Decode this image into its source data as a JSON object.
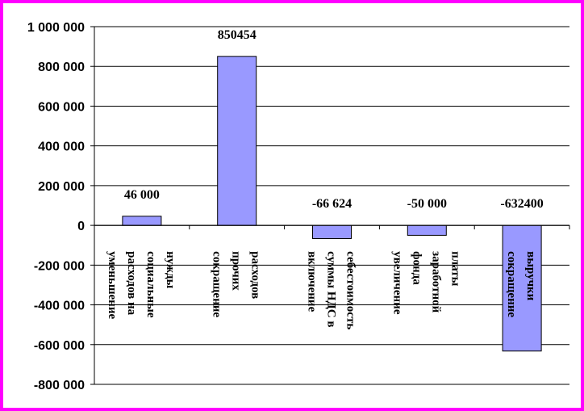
{
  "colors": {
    "frame_border": "#ff00ff",
    "bar_fill": "#9999ff",
    "bar_stroke": "#000000",
    "gridline": "#000000"
  },
  "chart_data": {
    "type": "bar",
    "title": "",
    "xlabel": "",
    "ylabel": "",
    "ylim": [
      -800000,
      1000000
    ],
    "ytick_step": 200000,
    "yticks": [
      "1 000 000",
      "800 000",
      "600 000",
      "400 000",
      "200 000",
      "0",
      "-200 000",
      "-400 000",
      "-600 000",
      "-800 000"
    ],
    "grid": true,
    "legend": "none",
    "categories": [
      [
        "уменьшение",
        "расходов на",
        "социальные",
        "нужды"
      ],
      [
        "сокращение",
        "прочих",
        "расходов"
      ],
      [
        "включение",
        "суммы НДС в",
        "себестоимость"
      ],
      [
        "увеличение",
        "фонда",
        "заработной",
        "платы"
      ],
      [
        "сокращение",
        "выручки"
      ]
    ],
    "values": [
      46000,
      850454,
      -66624,
      -50000,
      -632400
    ],
    "data_labels": [
      "46 000",
      "850454",
      "-66 624",
      "-50 000",
      "-632400"
    ]
  }
}
